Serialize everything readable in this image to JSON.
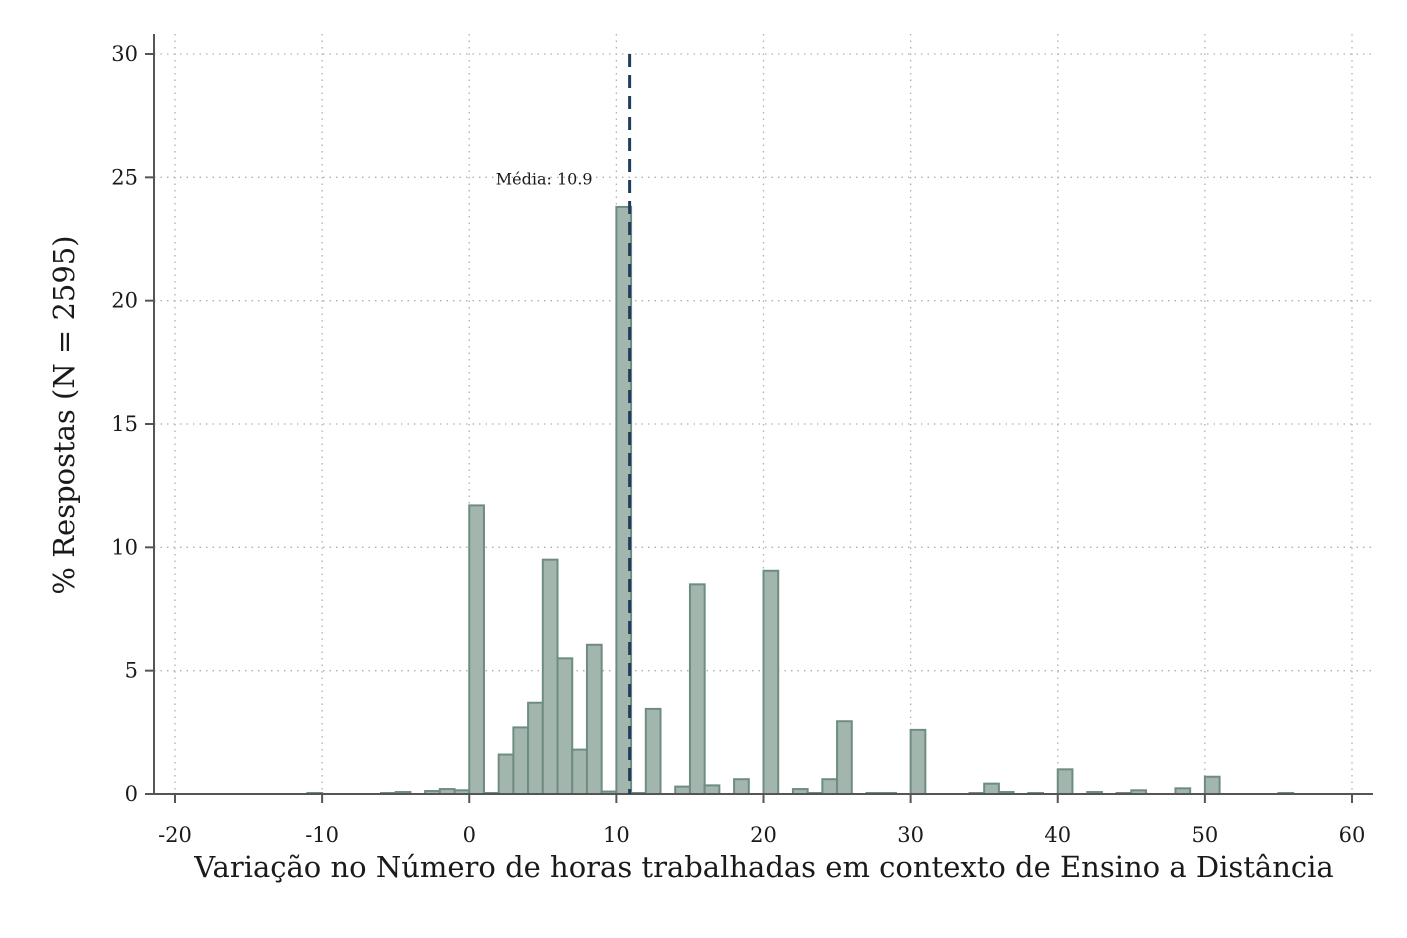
{
  "chart_data": {
    "type": "bar",
    "subtype": "histogram",
    "xlabel": "Variação no Número de horas trabalhadas em contexto de Ensino a Distância",
    "ylabel": "% Respostas (N = 2595)",
    "xlim": [
      -20,
      60
    ],
    "ylim": [
      0,
      30
    ],
    "xticks": [
      -20,
      -10,
      0,
      10,
      20,
      30,
      40,
      50,
      60
    ],
    "yticks": [
      0,
      5,
      10,
      15,
      20,
      25,
      30
    ],
    "grid": true,
    "bin_width": 1,
    "colors": {
      "bar_fill": "#a3b6ae",
      "bar_stroke": "#6e8c82",
      "mean_line": "#1f3d5c",
      "grid": "#b0b0b0",
      "axis": "#555555"
    },
    "bins": [
      {
        "x": -10,
        "value": 0.04
      },
      {
        "x": -5,
        "value": 0.04
      },
      {
        "x": -4,
        "value": 0.08
      },
      {
        "x": -2,
        "value": 0.12
      },
      {
        "x": -1,
        "value": 0.2
      },
      {
        "x": 0,
        "value": 0.15
      },
      {
        "x": 1,
        "value": 11.7
      },
      {
        "x": 2,
        "value": 0.04
      },
      {
        "x": 3,
        "value": 1.6
      },
      {
        "x": 4,
        "value": 2.7
      },
      {
        "x": 5,
        "value": 3.7
      },
      {
        "x": 6,
        "value": 9.5
      },
      {
        "x": 7,
        "value": 5.5
      },
      {
        "x": 8,
        "value": 1.8
      },
      {
        "x": 9,
        "value": 6.05
      },
      {
        "x": 10,
        "value": 0.1
      },
      {
        "x": 11,
        "value": 23.8
      },
      {
        "x": 12,
        "value": 0.04
      },
      {
        "x": 13,
        "value": 3.45
      },
      {
        "x": 15,
        "value": 0.3
      },
      {
        "x": 16,
        "value": 8.5
      },
      {
        "x": 17,
        "value": 0.35
      },
      {
        "x": 19,
        "value": 0.6
      },
      {
        "x": 21,
        "value": 9.05
      },
      {
        "x": 23,
        "value": 0.2
      },
      {
        "x": 24,
        "value": 0.04
      },
      {
        "x": 25,
        "value": 0.6
      },
      {
        "x": 26,
        "value": 2.95
      },
      {
        "x": 28,
        "value": 0.04
      },
      {
        "x": 29,
        "value": 0.04
      },
      {
        "x": 31,
        "value": 2.6
      },
      {
        "x": 35,
        "value": 0.04
      },
      {
        "x": 36,
        "value": 0.42
      },
      {
        "x": 37,
        "value": 0.08
      },
      {
        "x": 39,
        "value": 0.04
      },
      {
        "x": 41,
        "value": 1.0
      },
      {
        "x": 43,
        "value": 0.08
      },
      {
        "x": 45,
        "value": 0.04
      },
      {
        "x": 46,
        "value": 0.15
      },
      {
        "x": 49,
        "value": 0.23
      },
      {
        "x": 51,
        "value": 0.7
      },
      {
        "x": 56,
        "value": 0.04
      }
    ],
    "mean": {
      "value": 10.9,
      "label": "Média: 10.9",
      "line_top": 30
    }
  }
}
